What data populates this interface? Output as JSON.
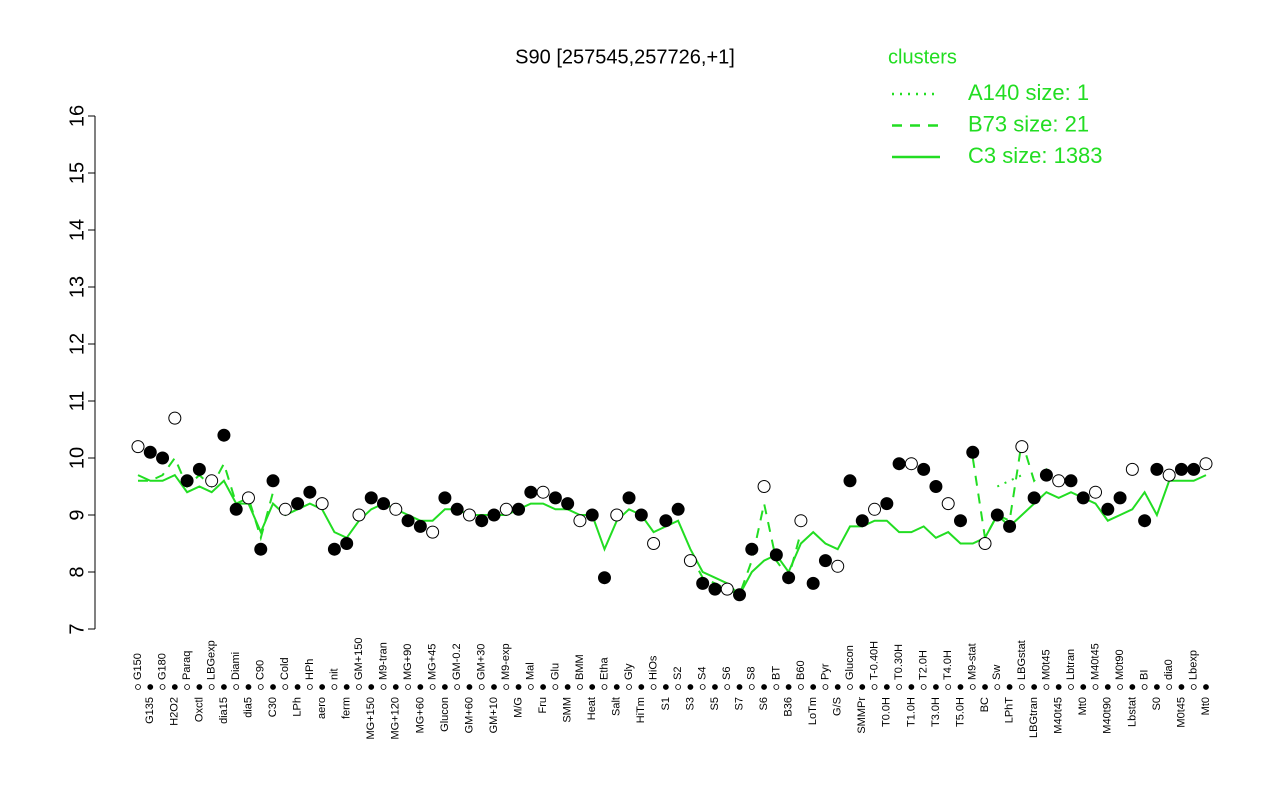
{
  "chart_data": {
    "type": "line",
    "title": "S90 [257545,257726,+1]",
    "legend_title": "clusters",
    "categories": [
      "G150",
      "G135",
      "G180",
      "H2O2",
      "Paraq",
      "Oxctl",
      "LBGexp",
      "dia15",
      "Diami",
      "dia5",
      "C90",
      "C30",
      "Cold",
      "LPh",
      "HPh",
      "aero",
      "nit",
      "ferm",
      "GM+150",
      "MG+150",
      "M9-tran",
      "MG+120",
      "MG+90",
      "MG+60",
      "MG+45",
      "Glucon",
      "GM-0.2",
      "GM+60",
      "GM+30",
      "GM+10",
      "M9-exp",
      "M/G",
      "Mal",
      "Fru",
      "Glu",
      "SMM",
      "BMM",
      "Heat",
      "Etha",
      "Salt",
      "Gly",
      "HiTm",
      "HiOs",
      "S1",
      "S2",
      "S3",
      "S4",
      "S5",
      "S6",
      "S7",
      "S8",
      "S6",
      "BT",
      "B36",
      "B60",
      "LoTm",
      "Pyr",
      "G/S",
      "Glucon",
      "SMMPr",
      "T-0.40H",
      "T0.0H",
      "T0.30H",
      "T1.0H",
      "T2.0H",
      "T3.0H",
      "T4.0H",
      "T5.0H",
      "M9-stat",
      "BC",
      "Sw",
      "LPhT",
      "LBGstat",
      "LBGtran",
      "M0t45",
      "M40t45",
      "Lbtran",
      "Mt0",
      "M40t45",
      "M40t90",
      "M0t90",
      "Lbstat",
      "BI",
      "S0",
      "dia0",
      "M0t45",
      "Lbexp",
      "Mt0"
    ],
    "values": [
      10.2,
      10.1,
      10.0,
      10.7,
      9.6,
      9.8,
      9.6,
      10.4,
      9.1,
      9.3,
      8.4,
      9.6,
      9.1,
      9.2,
      9.4,
      9.2,
      8.4,
      8.5,
      9.0,
      9.3,
      9.2,
      9.1,
      8.9,
      8.8,
      8.7,
      9.3,
      9.1,
      9.0,
      8.9,
      9.0,
      9.1,
      9.1,
      9.4,
      9.4,
      9.3,
      9.2,
      8.9,
      9.0,
      7.9,
      9.0,
      9.3,
      9.0,
      8.5,
      8.9,
      9.1,
      8.2,
      7.8,
      7.7,
      7.7,
      7.6,
      8.4,
      9.5,
      8.3,
      7.9,
      8.9,
      7.8,
      8.2,
      8.1,
      9.6,
      8.9,
      9.1,
      9.2,
      9.9,
      9.9,
      9.8,
      9.5,
      9.2,
      8.9,
      10.1,
      8.5,
      9.0,
      8.8,
      10.2,
      9.3,
      9.7,
      9.6,
      9.6,
      9.3,
      9.4,
      9.1,
      9.3,
      9.8,
      8.9,
      9.8,
      9.7,
      9.8,
      9.8,
      9.9
    ],
    "point_color": "#000000",
    "series": [
      {
        "name": "A140 size: 1",
        "color": "#22dd22",
        "dash": "dotted",
        "values": [
          null,
          null,
          null,
          null,
          null,
          null,
          null,
          null,
          null,
          null,
          null,
          null,
          null,
          null,
          null,
          null,
          null,
          null,
          null,
          null,
          null,
          null,
          null,
          null,
          null,
          null,
          null,
          null,
          null,
          null,
          null,
          null,
          null,
          null,
          null,
          null,
          null,
          null,
          null,
          null,
          null,
          null,
          null,
          null,
          null,
          null,
          null,
          null,
          null,
          null,
          null,
          null,
          null,
          null,
          null,
          null,
          null,
          null,
          null,
          null,
          null,
          null,
          null,
          null,
          null,
          null,
          null,
          null,
          null,
          null,
          9.5,
          9.6,
          9.7,
          null,
          null,
          null,
          null,
          null,
          null,
          null,
          null,
          null,
          null,
          null,
          null,
          null,
          null,
          null
        ]
      },
      {
        "name": "B73 size: 21",
        "color": "#22dd22",
        "dash": "dashed",
        "values": [
          9.6,
          9.6,
          9.7,
          10.0,
          9.5,
          9.7,
          9.5,
          9.9,
          9.2,
          9.3,
          8.6,
          9.4,
          null,
          null,
          null,
          null,
          null,
          null,
          null,
          null,
          null,
          null,
          null,
          null,
          null,
          null,
          null,
          null,
          null,
          null,
          null,
          null,
          null,
          null,
          null,
          null,
          null,
          null,
          null,
          null,
          null,
          null,
          null,
          null,
          null,
          8.3,
          7.9,
          7.8,
          7.7,
          7.6,
          8.2,
          9.2,
          8.2,
          7.9,
          8.7,
          null,
          null,
          null,
          null,
          null,
          null,
          null,
          null,
          null,
          null,
          null,
          null,
          null,
          10.0,
          8.6,
          9.0,
          8.9,
          10.3,
          9.6,
          9.8,
          9.6,
          9.6,
          null,
          null,
          null,
          null,
          null,
          null,
          null,
          null,
          null,
          null,
          null
        ]
      },
      {
        "name": "C3 size: 1383",
        "color": "#22dd22",
        "dash": "solid",
        "values": [
          9.7,
          9.6,
          9.6,
          9.7,
          9.4,
          9.5,
          9.4,
          9.6,
          9.2,
          9.2,
          8.7,
          9.2,
          9.0,
          9.1,
          9.2,
          9.1,
          8.7,
          8.6,
          8.9,
          9.1,
          9.2,
          9.1,
          9.0,
          8.9,
          8.9,
          9.1,
          9.1,
          9.0,
          9.0,
          9.0,
          9.0,
          9.1,
          9.2,
          9.2,
          9.1,
          9.1,
          9.0,
          9.0,
          8.4,
          8.9,
          9.1,
          9.0,
          8.7,
          8.8,
          8.9,
          8.4,
          8.0,
          7.9,
          7.8,
          7.6,
          8.0,
          8.2,
          8.3,
          8.0,
          8.5,
          8.7,
          8.5,
          8.4,
          8.8,
          8.8,
          8.9,
          8.9,
          8.7,
          8.7,
          8.8,
          8.6,
          8.7,
          8.5,
          8.5,
          8.6,
          9.0,
          8.8,
          9.0,
          9.2,
          9.4,
          9.3,
          9.4,
          9.3,
          9.2,
          8.9,
          9.0,
          9.1,
          9.4,
          9.0,
          9.6,
          9.6,
          9.6,
          9.7
        ]
      }
    ],
    "ylim": [
      7,
      16
    ],
    "yticks": [
      7,
      8,
      9,
      10,
      11,
      12,
      13,
      14,
      15,
      16
    ]
  }
}
